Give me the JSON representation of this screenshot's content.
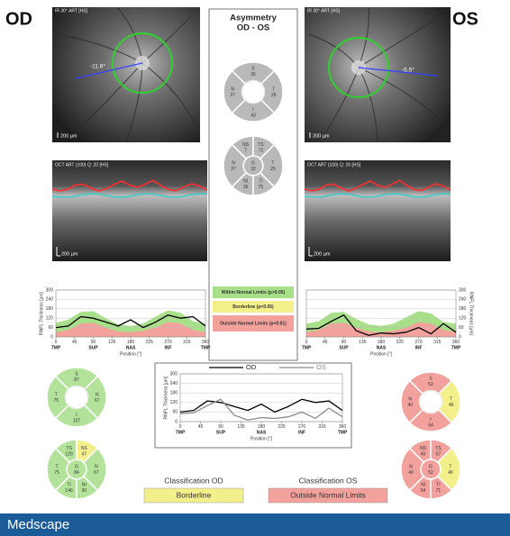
{
  "od": {
    "eye": "OD",
    "fundus": {
      "title": "IR 30° ART [HS]",
      "angle": "-11.6°",
      "scale": "200 µm"
    },
    "oct": {
      "title": "OCT ART (100) Q: 20 [HS]",
      "scale": "200 µm"
    },
    "quadrants": [
      {
        "name": "S",
        "value": 87,
        "side": "top",
        "color": "#b3e39b"
      },
      {
        "name": "T",
        "value": 75,
        "side": "left",
        "color": "#b3e39b"
      },
      {
        "name": "N",
        "value": 67,
        "side": "right",
        "color": "#b3e39b"
      },
      {
        "name": "I",
        "value": 107,
        "side": "bottom",
        "color": "#b3e39b"
      }
    ],
    "sectors": [
      {
        "name": "TS",
        "value": 129,
        "side": "top-left",
        "color": "#b3e39b"
      },
      {
        "name": "NS",
        "value": 47,
        "side": "top-right",
        "color": "#f3f08c"
      },
      {
        "name": "T",
        "value": 75,
        "side": "left",
        "color": "#b3e39b"
      },
      {
        "name": "N",
        "value": 67,
        "side": "right",
        "color": "#b3e39b"
      },
      {
        "name": "TI",
        "value": 146,
        "side": "bottom-left",
        "color": "#b3e39b"
      },
      {
        "name": "NI",
        "value": 90,
        "side": "bottom-right",
        "color": "#b3e39b"
      },
      {
        "name": "G",
        "value": 84,
        "side": "center",
        "color": "#b3e39b"
      }
    ]
  },
  "os": {
    "eye": "OS",
    "fundus": {
      "title": "IR 30° ART [HS]",
      "angle": "-5.5°",
      "scale": "200 µm"
    },
    "oct": {
      "title": "OCT ART (100) Q: 26 [HS]",
      "scale": "200 µm"
    },
    "quadrants": [
      {
        "name": "S",
        "value": 52,
        "side": "top",
        "color": "#f2a19c"
      },
      {
        "name": "N",
        "value": 40,
        "side": "left",
        "color": "#f2a19c"
      },
      {
        "name": "T",
        "value": 46,
        "side": "right",
        "color": "#f3f08c"
      },
      {
        "name": "I",
        "value": 64,
        "side": "bottom",
        "color": "#f2a19c"
      }
    ],
    "sectors": [
      {
        "name": "NS",
        "value": 40,
        "side": "top-left",
        "color": "#f2a19c"
      },
      {
        "name": "TS",
        "value": 57,
        "side": "top-right",
        "color": "#f2a19c"
      },
      {
        "name": "N",
        "value": 40,
        "side": "left",
        "color": "#f2a19c"
      },
      {
        "name": "T",
        "value": 46,
        "side": "right",
        "color": "#f3f08c"
      },
      {
        "name": "NI",
        "value": 54,
        "side": "bottom-left",
        "color": "#f2a19c"
      },
      {
        "name": "TI",
        "value": 71,
        "side": "bottom-right",
        "color": "#f2a19c"
      },
      {
        "name": "G",
        "value": 52,
        "side": "center",
        "color": "#f2a19c"
      }
    ]
  },
  "asymmetry": {
    "title": "Asymmetry",
    "subtitle": "OD - OS",
    "quadrants": [
      {
        "name": "S",
        "value": 35,
        "side": "top",
        "color": "#b9b9b9"
      },
      {
        "name": "N",
        "value": 27,
        "side": "left",
        "color": "#b9b9b9"
      },
      {
        "name": "T",
        "value": 29,
        "side": "right",
        "color": "#b9b9b9"
      },
      {
        "name": "I",
        "value": 43,
        "side": "bottom",
        "color": "#b9b9b9"
      }
    ],
    "sectors": [
      {
        "name": "NS",
        "value": 7,
        "side": "top-left",
        "color": "#b9b9b9"
      },
      {
        "name": "TS",
        "value": 72,
        "side": "top-right",
        "color": "#b9b9b9"
      },
      {
        "name": "N",
        "value": 27,
        "side": "left",
        "color": "#b9b9b9"
      },
      {
        "name": "T",
        "value": 29,
        "side": "right",
        "color": "#b9b9b9"
      },
      {
        "name": "NI",
        "value": 36,
        "side": "bottom-left",
        "color": "#b9b9b9"
      },
      {
        "name": "TI",
        "value": 75,
        "side": "bottom-right",
        "color": "#b9b9b9"
      },
      {
        "name": "G",
        "value": 32,
        "side": "center",
        "color": "#b9b9b9"
      }
    ]
  },
  "legend": [
    {
      "label": "Within Normal Limits (p>0.05)",
      "color": "#a8e08a"
    },
    {
      "label": "Borderline (p<0.05)",
      "color": "#f3f08c"
    },
    {
      "label": "Outside Normal Limits (p<0.01)",
      "color": "#f2a19c"
    }
  ],
  "chart_data": [
    {
      "type": "line",
      "ylabel": "RNFL Thickness [µm]",
      "xlabel": "Position [°]",
      "x": [
        0,
        30,
        60,
        90,
        120,
        150,
        180,
        210,
        240,
        270,
        300,
        330,
        360
      ],
      "normal_upper": [
        90,
        110,
        160,
        165,
        120,
        80,
        70,
        85,
        130,
        170,
        155,
        100,
        85
      ],
      "normal_lower": [
        30,
        45,
        85,
        90,
        60,
        35,
        30,
        40,
        60,
        95,
        85,
        45,
        30
      ],
      "normal_color": "#a8e08a",
      "outside_color": "#f2a19c",
      "series": [
        {
          "color": "#000000",
          "values": [
            60,
            70,
            130,
            120,
            95,
            70,
            110,
            60,
            95,
            140,
            120,
            130,
            70
          ]
        }
      ],
      "xlim": [
        0,
        360
      ],
      "ylim": [
        0,
        300
      ],
      "xticks": [
        0,
        45,
        90,
        135,
        180,
        225,
        270,
        315,
        360
      ],
      "yticks": [
        0,
        60,
        120,
        180,
        240,
        300
      ],
      "regions": [
        {
          "value": 0,
          "label": "TMP"
        },
        {
          "value": 90,
          "label": "SUP"
        },
        {
          "value": 180,
          "label": "NAS"
        },
        {
          "value": 270,
          "label": "INF"
        },
        {
          "value": 360,
          "label": "TMP"
        }
      ],
      "yaxis_side": "left"
    },
    {
      "type": "line",
      "ylabel": "RNFL Thickness [µm]",
      "xlabel": "Position [°]",
      "x": [
        0,
        30,
        60,
        90,
        120,
        150,
        180,
        210,
        240,
        270,
        300,
        330,
        360
      ],
      "normal_upper": [
        85,
        100,
        155,
        160,
        115,
        80,
        70,
        85,
        125,
        165,
        150,
        95,
        85
      ],
      "normal_lower": [
        30,
        45,
        85,
        90,
        60,
        35,
        30,
        40,
        60,
        95,
        85,
        45,
        30
      ],
      "normal_color": "#a8e08a",
      "outside_color": "#f2a19c",
      "series": [
        {
          "color": "#000000",
          "values": [
            50,
            55,
            100,
            140,
            40,
            10,
            25,
            20,
            30,
            60,
            20,
            85,
            30
          ]
        }
      ],
      "xlim": [
        0,
        360
      ],
      "ylim": [
        0,
        300
      ],
      "xticks": [
        0,
        45,
        90,
        135,
        180,
        225,
        270,
        315,
        360
      ],
      "yticks": [
        0,
        60,
        120,
        180,
        240,
        300
      ],
      "regions": [
        {
          "value": 0,
          "label": "TMP"
        },
        {
          "value": 90,
          "label": "SUP"
        },
        {
          "value": 180,
          "label": "NAS"
        },
        {
          "value": 270,
          "label": "INF"
        },
        {
          "value": 360,
          "label": "TMP"
        }
      ],
      "yaxis_side": "right"
    },
    {
      "type": "line",
      "ylabel": "RNFL Thickness [µm]",
      "xlabel": "Position [°]",
      "x": [
        0,
        30,
        60,
        90,
        120,
        150,
        180,
        210,
        240,
        270,
        300,
        330,
        360
      ],
      "series": [
        {
          "name": "OD",
          "color": "#000000",
          "values": [
            60,
            70,
            130,
            120,
            95,
            70,
            110,
            60,
            95,
            140,
            120,
            130,
            70
          ]
        },
        {
          "name": "OS",
          "color": "#8a8a8a",
          "values": [
            50,
            55,
            100,
            140,
            40,
            10,
            25,
            20,
            30,
            60,
            20,
            85,
            30
          ]
        }
      ],
      "xlim": [
        0,
        360
      ],
      "ylim": [
        0,
        300
      ],
      "xticks": [
        0,
        45,
        90,
        135,
        180,
        225,
        270,
        315,
        360
      ],
      "yticks": [
        0,
        60,
        120,
        180,
        240,
        300
      ],
      "regions": [
        {
          "value": 0,
          "label": "TMP"
        },
        {
          "value": 90,
          "label": "SUP"
        },
        {
          "value": 180,
          "label": "NAS"
        },
        {
          "value": 270,
          "label": "INF"
        },
        {
          "value": 360,
          "label": "TMP"
        }
      ],
      "yaxis_side": "left"
    }
  ],
  "classification": {
    "od_title": "Classification OD",
    "od_value": "Borderline",
    "od_color": "#f3f08c",
    "os_title": "Classification OS",
    "os_value": "Outside Normal Limits",
    "os_color": "#f2a19c"
  },
  "footer": {
    "brand": "Medscape"
  }
}
